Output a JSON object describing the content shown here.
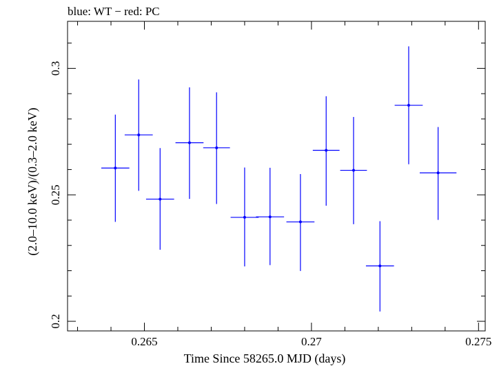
{
  "chart_data": {
    "type": "scatter",
    "title": "blue: WT − red: PC",
    "xlabel": "Time Since 58265.0 MJD (days)",
    "ylabel": "(2.0–10.0 keV)/(0.3–2.0 keV)",
    "xlim": [
      0.2627,
      0.2752
    ],
    "ylim": [
      0.1962,
      0.3186
    ],
    "x_ticks": [
      0.265,
      0.27,
      0.275
    ],
    "x_tick_labels": [
      "0.265",
      "0.27",
      "0.275"
    ],
    "y_ticks": [
      0.2,
      0.25,
      0.3
    ],
    "y_tick_labels": [
      "0.2",
      "0.25",
      "0.3"
    ],
    "series": [
      {
        "name": "WT",
        "color": "#0000ff",
        "points": [
          {
            "x": 0.26413,
            "xerr": 0.00042,
            "y": 0.2606,
            "yerr_low": 0.0213,
            "yerr_high": 0.0211
          },
          {
            "x": 0.26483,
            "xerr": 0.00042,
            "y": 0.2737,
            "yerr_low": 0.0221,
            "yerr_high": 0.0219
          },
          {
            "x": 0.26547,
            "xerr": 0.00042,
            "y": 0.2483,
            "yerr_low": 0.02,
            "yerr_high": 0.0202
          },
          {
            "x": 0.26635,
            "xerr": 0.00042,
            "y": 0.2706,
            "yerr_low": 0.0222,
            "yerr_high": 0.0219
          },
          {
            "x": 0.26716,
            "xerr": 0.0004,
            "y": 0.2686,
            "yerr_low": 0.0222,
            "yerr_high": 0.0219
          },
          {
            "x": 0.268,
            "xerr": 0.00042,
            "y": 0.2411,
            "yerr_low": 0.0194,
            "yerr_high": 0.0197
          },
          {
            "x": 0.26876,
            "xerr": 0.00042,
            "y": 0.2413,
            "yerr_low": 0.0191,
            "yerr_high": 0.0194
          },
          {
            "x": 0.26967,
            "xerr": 0.00042,
            "y": 0.2393,
            "yerr_low": 0.0194,
            "yerr_high": 0.0189
          },
          {
            "x": 0.27044,
            "xerr": 0.0004,
            "y": 0.2676,
            "yerr_low": 0.0219,
            "yerr_high": 0.0214
          },
          {
            "x": 0.27126,
            "xerr": 0.0004,
            "y": 0.2597,
            "yerr_low": 0.0213,
            "yerr_high": 0.0211
          },
          {
            "x": 0.27205,
            "xerr": 0.00042,
            "y": 0.2219,
            "yerr_low": 0.018,
            "yerr_high": 0.0177
          },
          {
            "x": 0.27291,
            "xerr": 0.00042,
            "y": 0.2854,
            "yerr_low": 0.0233,
            "yerr_high": 0.0233
          },
          {
            "x": 0.27379,
            "xerr": 0.00055,
            "y": 0.2587,
            "yerr_low": 0.0186,
            "yerr_high": 0.0181
          }
        ]
      },
      {
        "name": "PC",
        "color": "#ff0000",
        "points": []
      }
    ],
    "grid": false
  }
}
